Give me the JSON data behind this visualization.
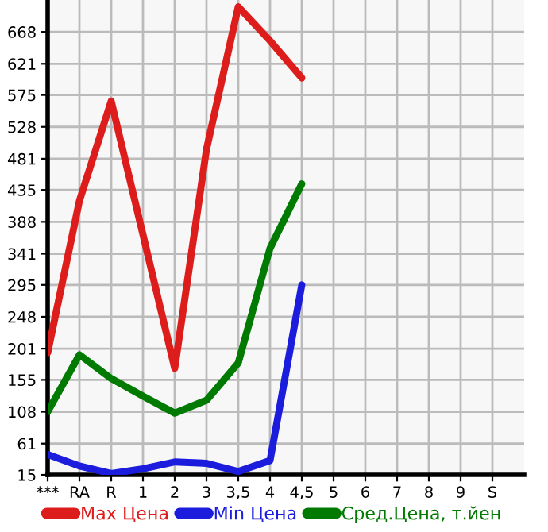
{
  "chart_data": {
    "type": "line",
    "categories": [
      "***",
      "RA",
      "R",
      "1",
      "2",
      "3",
      "3,5",
      "4",
      "4,5",
      "5",
      "6",
      "7",
      "8",
      "9",
      "S"
    ],
    "series": [
      {
        "name": "Max Цена",
        "color": "#dd1c1c",
        "values": [
          195,
          419,
          566,
          369,
          172,
          495,
          705,
          655,
          600,
          null,
          null,
          null,
          null,
          null,
          null
        ]
      },
      {
        "name": "Min Цена",
        "color": "#1c1cdd",
        "values": [
          45,
          28,
          17,
          24,
          34,
          32,
          20,
          36,
          295,
          null,
          null,
          null,
          null,
          null,
          null
        ]
      },
      {
        "name": "Сред.Цена, т.йен",
        "color": "#007a00",
        "values": [
          108,
          192,
          157,
          131,
          106,
          125,
          180,
          349,
          444,
          null,
          null,
          null,
          null,
          null,
          null
        ]
      }
    ],
    "ylim": [
      15,
      715
    ],
    "yticks": [
      15,
      61,
      108,
      155,
      201,
      248,
      295,
      341,
      388,
      435,
      481,
      528,
      575,
      621,
      668
    ],
    "grid": true,
    "legend": "bottom",
    "marker": "none",
    "line_style": "solid"
  }
}
